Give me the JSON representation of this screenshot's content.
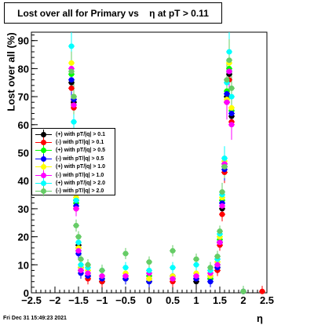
{
  "chart_data": {
    "type": "scatter",
    "title": "Lost over all for Primary vs    η at pT > 0.11",
    "xlabel": "η",
    "ylabel": "Lost over all (%)",
    "xlim": [
      -2.5,
      2.5
    ],
    "ylim": [
      0,
      93
    ],
    "xticks": [
      "−2.5",
      "−2",
      "−1.5",
      "−1",
      "−0.5",
      "0",
      "0.5",
      "1",
      "1.5",
      "2",
      "2.5"
    ],
    "yticks": [
      "0",
      "10",
      "20",
      "30",
      "40",
      "50",
      "60",
      "70",
      "80",
      "90"
    ],
    "grid": false,
    "legend_position": "middle-left",
    "footer": "Fri Dec 31 15:49:23 2021",
    "series": [
      {
        "name": "(+) with pT/|q| > 0.1",
        "color": "#000000",
        "x": [
          -1.65,
          -1.6,
          -1.55,
          -1.5,
          -1.45,
          -1.3,
          -1.0,
          -0.5,
          0.0,
          0.5,
          1.0,
          1.3,
          1.45,
          1.5,
          1.55,
          1.6,
          1.65,
          1.7,
          1.75,
          2.0
        ],
        "y": [
          75,
          68,
          33,
          17,
          9,
          6,
          4,
          5,
          4,
          5,
          4,
          5,
          9,
          18,
          30,
          45,
          70,
          78,
          63,
          0.5
        ]
      },
      {
        "name": "(-) with pT/|q| > 0.1",
        "color": "#ff0000",
        "x": [
          -1.65,
          -1.6,
          -1.55,
          -1.5,
          -1.45,
          -1.3,
          -1.0,
          -0.5,
          0.0,
          0.5,
          1.0,
          1.3,
          1.45,
          1.5,
          1.55,
          1.6,
          1.65,
          1.7,
          1.75,
          2.0,
          2.4
        ],
        "y": [
          73,
          66,
          30,
          16,
          8,
          5,
          4,
          6,
          5,
          4,
          5,
          6,
          8,
          17,
          28,
          43,
          68,
          76,
          61,
          0.5,
          0.5
        ]
      },
      {
        "name": "(+) with pT/|q| > 0.5",
        "color": "#00ff00",
        "x": [
          -1.65,
          -1.6,
          -1.55,
          -1.5,
          -1.45,
          -1.3,
          -1.0,
          -0.5,
          0.0,
          0.5,
          1.0,
          1.3,
          1.45,
          1.5,
          1.55,
          1.6,
          1.65,
          1.7,
          1.75,
          2.0
        ],
        "y": [
          78,
          70,
          32,
          15,
          8,
          7,
          6,
          5,
          6,
          5,
          6,
          5,
          10,
          19,
          33,
          46,
          72,
          80,
          65,
          0.5
        ]
      },
      {
        "name": "(-) with pT/|q| > 0.5",
        "color": "#0000ff",
        "x": [
          -1.65,
          -1.6,
          -1.55,
          -1.5,
          -1.45,
          -1.3,
          -1.0,
          -0.5,
          0.0,
          0.5,
          1.0,
          1.3,
          1.45,
          1.5,
          1.55,
          1.6,
          1.65,
          1.7,
          1.75,
          2.0
        ],
        "y": [
          76,
          69,
          31,
          14,
          7,
          6,
          5,
          5,
          4,
          6,
          5,
          4,
          9,
          18,
          32,
          44,
          71,
          79,
          64,
          0.5
        ]
      },
      {
        "name": "(+) with pT/|q| > 1.0",
        "color": "#ffff00",
        "x": [
          -1.65,
          -1.6,
          -1.55,
          -1.5,
          -1.45,
          -1.3,
          -1.0,
          -0.5,
          0.0,
          0.5,
          1.0,
          1.3,
          1.45,
          1.5,
          1.55,
          1.6,
          1.65,
          1.7,
          1.75,
          2.0
        ],
        "y": [
          82,
          70,
          34,
          16,
          9,
          8,
          6,
          7,
          5,
          6,
          7,
          6,
          11,
          20,
          34,
          47,
          69,
          82,
          66,
          0.5
        ]
      },
      {
        "name": "(-) with pT/|q| > 1.0",
        "color": "#ff00ff",
        "x": [
          -1.65,
          -1.6,
          -1.55,
          -1.5,
          -1.45,
          -1.3,
          -1.0,
          -0.5,
          0.0,
          0.5,
          1.0,
          1.3,
          1.45,
          1.5,
          1.55,
          1.6,
          1.65,
          1.7,
          1.75,
          2.0
        ],
        "y": [
          80,
          67,
          30,
          15,
          8,
          7,
          6,
          6,
          7,
          5,
          6,
          7,
          10,
          18,
          31,
          46,
          68,
          79,
          60,
          0.5
        ]
      },
      {
        "name": "(+) with pT/|q| > 2.0",
        "color": "#00ffff",
        "x": [
          -1.65,
          -1.6,
          -1.55,
          -1.5,
          -1.45,
          -1.3,
          -1.0,
          -0.5,
          0.0,
          0.5,
          1.0,
          1.3,
          1.45,
          1.5,
          1.55,
          1.6,
          1.65,
          1.7,
          1.75,
          2.0
        ],
        "y": [
          88,
          61,
          33,
          18,
          10,
          9,
          8,
          9,
          8,
          9,
          10,
          8,
          12,
          21,
          35,
          48,
          75,
          86,
          70,
          0.5
        ]
      },
      {
        "name": "(-) with pT/|q| > 2.0",
        "color": "#66cc66",
        "x": [
          -1.65,
          -1.6,
          -1.55,
          -1.5,
          -1.45,
          -1.3,
          -1.0,
          -0.5,
          0.0,
          0.5,
          1.0,
          1.3,
          1.45,
          1.5,
          1.55,
          1.6,
          1.65,
          1.7,
          1.75,
          2.0
        ],
        "y": [
          79,
          70,
          24,
          20,
          12,
          10,
          8,
          14,
          11,
          15,
          12,
          9,
          13,
          22,
          36,
          45,
          76,
          83,
          73,
          0.5
        ]
      }
    ]
  }
}
